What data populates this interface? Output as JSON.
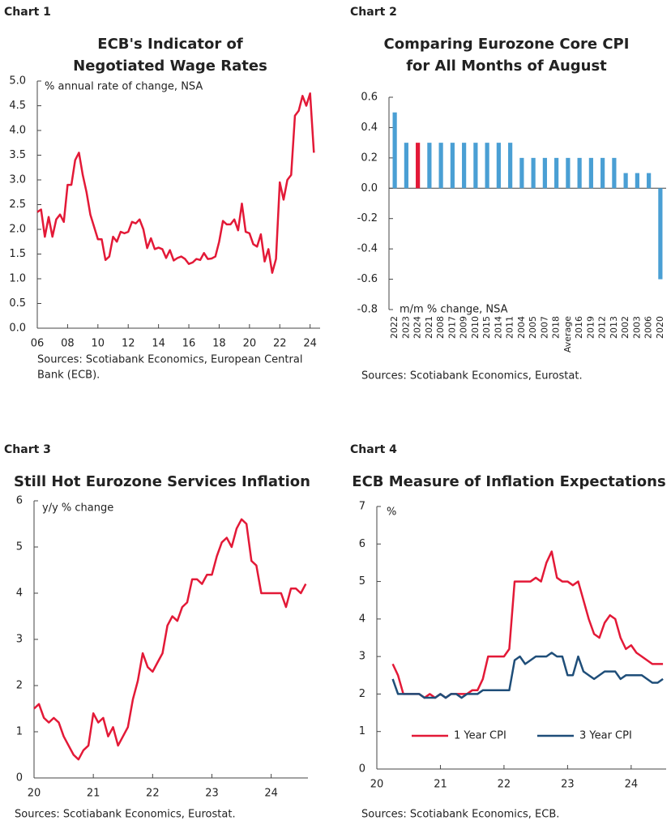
{
  "chart_data": [
    {
      "type": "line",
      "label": "Chart 1",
      "title": [
        "ECB's Indicator of",
        "Negotiated Wage Rates"
      ],
      "note": "% annual rate of change, NSA",
      "source": [
        "Sources: Scotiabank Economics, European Central",
        "Bank (ECB)."
      ],
      "color": "#e31937",
      "x": [
        2006,
        2006.25,
        2006.5,
        2006.75,
        2007,
        2007.25,
        2007.5,
        2007.75,
        2008,
        2008.25,
        2008.5,
        2008.75,
        2009,
        2009.25,
        2009.5,
        2009.75,
        2010,
        2010.25,
        2010.5,
        2010.75,
        2011,
        2011.25,
        2011.5,
        2011.75,
        2012,
        2012.25,
        2012.5,
        2012.75,
        2013,
        2013.25,
        2013.5,
        2013.75,
        2014,
        2014.25,
        2014.5,
        2014.75,
        2015,
        2015.25,
        2015.5,
        2015.75,
        2016,
        2016.25,
        2016.5,
        2016.75,
        2017,
        2017.25,
        2017.5,
        2017.75,
        2018,
        2018.25,
        2018.5,
        2018.75,
        2019,
        2019.25,
        2019.5,
        2019.75,
        2020,
        2020.25,
        2020.5,
        2020.75,
        2021,
        2021.25,
        2021.5,
        2021.75,
        2022,
        2022.25,
        2022.5,
        2022.75,
        2023,
        2023.25,
        2023.5,
        2023.75,
        2024,
        2024.25
      ],
      "values": [
        2.35,
        2.4,
        1.85,
        2.25,
        1.85,
        2.2,
        2.3,
        2.15,
        2.9,
        2.9,
        3.4,
        3.55,
        3.1,
        2.75,
        2.3,
        2.05,
        1.8,
        1.8,
        1.38,
        1.45,
        1.85,
        1.75,
        1.95,
        1.92,
        1.95,
        2.15,
        2.12,
        2.2,
        2.0,
        1.62,
        1.82,
        1.6,
        1.63,
        1.6,
        1.42,
        1.58,
        1.37,
        1.42,
        1.45,
        1.4,
        1.3,
        1.33,
        1.4,
        1.38,
        1.52,
        1.4,
        1.41,
        1.45,
        1.75,
        2.17,
        2.1,
        2.1,
        2.2,
        1.98,
        2.52,
        1.95,
        1.92,
        1.7,
        1.65,
        1.9,
        1.35,
        1.6,
        1.12,
        1.4,
        2.95,
        2.6,
        3.0,
        3.1,
        4.3,
        4.4,
        4.7,
        4.5,
        4.75,
        3.55
      ],
      "xlim": [
        2006,
        2024.66
      ],
      "xticks": [
        {
          "value": 2006,
          "label": "06"
        },
        {
          "value": 2008,
          "label": "08"
        },
        {
          "value": 2010,
          "label": "10"
        },
        {
          "value": 2012,
          "label": "12"
        },
        {
          "value": 2014,
          "label": "14"
        },
        {
          "value": 2016,
          "label": "16"
        },
        {
          "value": 2018,
          "label": "18"
        },
        {
          "value": 2020,
          "label": "20"
        },
        {
          "value": 2022,
          "label": "22"
        },
        {
          "value": 2024,
          "label": "24"
        }
      ],
      "ylim": [
        0,
        5
      ],
      "yticks": [
        {
          "value": 0,
          "label": "0.0"
        },
        0.5,
        {
          "value": 1,
          "label": "1.0"
        },
        1.5,
        {
          "value": 2,
          "label": "2.0"
        },
        2.5,
        {
          "value": 3,
          "label": "3.0"
        },
        3.5,
        {
          "value": 4,
          "label": "4.0"
        },
        4.5,
        {
          "value": 5,
          "label": "5.0"
        }
      ]
    },
    {
      "type": "bar",
      "label": "Chart 2",
      "title": [
        "Comparing Eurozone Core CPI",
        "for All Months of August"
      ],
      "note": "m/m % change, NSA",
      "source": [
        "Sources: Scotiabank Economics, Eurostat."
      ],
      "categories": [
        "2022",
        "2023",
        "2024",
        "2021",
        "2008",
        "2017",
        "2009",
        "2010",
        "2015",
        "2014",
        "2011",
        "2004",
        "2005",
        "2007",
        "2018",
        "Average",
        "2016",
        "2019",
        "2012",
        "2013",
        "2002",
        "2003",
        "2006",
        "2020"
      ],
      "values": [
        0.5,
        0.3,
        0.3,
        0.3,
        0.3,
        0.3,
        0.3,
        0.3,
        0.3,
        0.3,
        0.3,
        0.2,
        0.2,
        0.2,
        0.2,
        0.2,
        0.2,
        0.2,
        0.2,
        0.2,
        0.1,
        0.1,
        0.1,
        -0.6
      ],
      "colors": [
        "#4a9fd4",
        "#4a9fd4",
        "#e31937",
        "#4a9fd4",
        "#4a9fd4",
        "#4a9fd4",
        "#4a9fd4",
        "#4a9fd4",
        "#4a9fd4",
        "#4a9fd4",
        "#4a9fd4",
        "#4a9fd4",
        "#4a9fd4",
        "#4a9fd4",
        "#4a9fd4",
        "#4a9fd4",
        "#4a9fd4",
        "#4a9fd4",
        "#4a9fd4",
        "#4a9fd4",
        "#4a9fd4",
        "#4a9fd4",
        "#4a9fd4",
        "#4a9fd4"
      ],
      "ylim": [
        -0.8,
        0.6
      ],
      "yticks": [
        -0.8,
        -0.6,
        -0.4,
        -0.2,
        {
          "value": 0,
          "label": "0.0"
        },
        0.2,
        0.4,
        0.6
      ]
    },
    {
      "type": "line",
      "label": "Chart 3",
      "title": [
        "Still Hot Eurozone Services Inflation"
      ],
      "note": "y/y % change",
      "source": [
        "Sources: Scotiabank Economics, Eurostat."
      ],
      "color": "#e31937",
      "x": [
        2020,
        2020.083,
        2020.167,
        2020.25,
        2020.333,
        2020.417,
        2020.5,
        2020.583,
        2020.667,
        2020.75,
        2020.833,
        2020.917,
        2021,
        2021.083,
        2021.167,
        2021.25,
        2021.333,
        2021.417,
        2021.5,
        2021.583,
        2021.667,
        2021.75,
        2021.833,
        2021.917,
        2022,
        2022.083,
        2022.167,
        2022.25,
        2022.333,
        2022.417,
        2022.5,
        2022.583,
        2022.667,
        2022.75,
        2022.833,
        2022.917,
        2023,
        2023.083,
        2023.167,
        2023.25,
        2023.333,
        2023.417,
        2023.5,
        2023.583,
        2023.667,
        2023.75,
        2023.833,
        2023.917,
        2024,
        2024.083,
        2024.167,
        2024.25,
        2024.333,
        2024.417,
        2024.5,
        2024.583
      ],
      "values": [
        1.5,
        1.6,
        1.3,
        1.2,
        1.3,
        1.2,
        0.9,
        0.7,
        0.5,
        0.4,
        0.6,
        0.7,
        1.4,
        1.2,
        1.3,
        0.9,
        1.1,
        0.7,
        0.9,
        1.1,
        1.7,
        2.1,
        2.7,
        2.4,
        2.3,
        2.5,
        2.7,
        3.3,
        3.5,
        3.4,
        3.7,
        3.8,
        4.3,
        4.3,
        4.2,
        4.4,
        4.4,
        4.8,
        5.1,
        5.2,
        5.0,
        5.4,
        5.6,
        5.5,
        4.7,
        4.6,
        4.0,
        4.0,
        4.0,
        4.0,
        4.0,
        3.7,
        4.1,
        4.1,
        4.0,
        4.2
      ],
      "xlim": [
        2020,
        2024.62
      ],
      "xticks": [
        {
          "value": 2020,
          "label": "20"
        },
        {
          "value": 2021,
          "label": "21"
        },
        {
          "value": 2022,
          "label": "22"
        },
        {
          "value": 2023,
          "label": "23"
        },
        {
          "value": 2024,
          "label": "24"
        }
      ],
      "ylim": [
        0,
        6
      ],
      "yticks": [
        0,
        1,
        2,
        3,
        4,
        5,
        6
      ]
    },
    {
      "type": "line",
      "label": "Chart 4",
      "title": [
        "ECB Measure of Inflation Expectations"
      ],
      "note": "%",
      "source": [
        "Sources: Scotiabank Economics,  ECB."
      ],
      "legend": "lower center",
      "x": [
        2020.25,
        2020.333,
        2020.417,
        2020.5,
        2020.583,
        2020.667,
        2020.75,
        2020.833,
        2020.917,
        2021,
        2021.083,
        2021.167,
        2021.25,
        2021.333,
        2021.417,
        2021.5,
        2021.583,
        2021.667,
        2021.75,
        2021.833,
        2021.917,
        2022,
        2022.083,
        2022.167,
        2022.25,
        2022.333,
        2022.417,
        2022.5,
        2022.583,
        2022.667,
        2022.75,
        2022.833,
        2022.917,
        2023,
        2023.083,
        2023.167,
        2023.25,
        2023.333,
        2023.417,
        2023.5,
        2023.583,
        2023.667,
        2023.75,
        2023.833,
        2023.917,
        2024,
        2024.083,
        2024.167,
        2024.25,
        2024.333,
        2024.417,
        2024.5
      ],
      "series": [
        {
          "name": "1 Year CPI",
          "color": "#e31937",
          "values": [
            2.8,
            2.5,
            2.0,
            2.0,
            2.0,
            2.0,
            1.9,
            2.0,
            1.9,
            2.0,
            1.9,
            2.0,
            2.0,
            2.0,
            2.0,
            2.1,
            2.1,
            2.4,
            3.0,
            3.0,
            3.0,
            3.0,
            3.2,
            5.0,
            5.0,
            5.0,
            5.0,
            5.1,
            5.0,
            5.5,
            5.8,
            5.1,
            5.0,
            5.0,
            4.9,
            5.0,
            4.5,
            4.0,
            3.6,
            3.5,
            3.9,
            4.1,
            4.0,
            3.5,
            3.2,
            3.3,
            3.1,
            3.0,
            2.9,
            2.8,
            2.8,
            2.8
          ]
        },
        {
          "name": "3 Year CPI",
          "color": "#1f4e79",
          "values": [
            2.4,
            2.0,
            2.0,
            2.0,
            2.0,
            2.0,
            1.9,
            1.9,
            1.9,
            2.0,
            1.9,
            2.0,
            2.0,
            1.9,
            2.0,
            2.0,
            2.0,
            2.1,
            2.1,
            2.1,
            2.1,
            2.1,
            2.1,
            2.9,
            3.0,
            2.8,
            2.9,
            3.0,
            3.0,
            3.0,
            3.1,
            3.0,
            3.0,
            2.5,
            2.5,
            3.0,
            2.6,
            2.5,
            2.4,
            2.5,
            2.6,
            2.6,
            2.6,
            2.4,
            2.5,
            2.5,
            2.5,
            2.5,
            2.4,
            2.3,
            2.3,
            2.4
          ]
        }
      ],
      "xlim": [
        2020,
        2024.55
      ],
      "xticks": [
        {
          "value": 2020,
          "label": "20"
        },
        {
          "value": 2021,
          "label": "21"
        },
        {
          "value": 2022,
          "label": "22"
        },
        {
          "value": 2023,
          "label": "23"
        },
        {
          "value": 2024,
          "label": "24"
        }
      ],
      "ylim": [
        0,
        7
      ],
      "yticks": [
        0,
        1,
        2,
        3,
        4,
        5,
        6,
        7
      ]
    }
  ]
}
